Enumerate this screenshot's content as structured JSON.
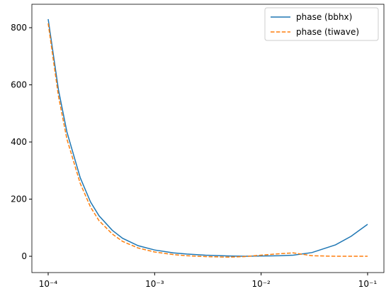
{
  "chart_data": {
    "type": "line",
    "x": [
      0.0001,
      0.000125,
      0.00015,
      0.0002,
      0.00025,
      0.0003,
      0.0004,
      0.0005,
      0.0007,
      0.001,
      0.0015,
      0.002,
      0.003,
      0.005,
      0.007,
      0.01,
      0.015,
      0.02,
      0.03,
      0.05,
      0.07,
      0.1
    ],
    "series": [
      {
        "name": "phase (bbhx)",
        "color": "#1f77b4",
        "linestyle": "solid",
        "values": [
          830,
          582,
          435,
          275,
          190,
          142,
          91,
          63,
          37,
          22,
          12,
          8,
          4,
          1,
          0,
          1,
          2,
          4,
          13,
          40,
          70,
          112
        ]
      },
      {
        "name": "phase (tiwave)",
        "color": "#ff7f0e",
        "linestyle": "dashed",
        "values": [
          815,
          560,
          410,
          255,
          172,
          125,
          78,
          52,
          29,
          15,
          6,
          2,
          -1,
          -3,
          -1,
          4,
          9,
          12,
          2,
          0,
          0,
          0
        ]
      }
    ],
    "xscale": "log",
    "xlim": [
      7.03e-05,
      0.1423
    ],
    "xticks": [
      {
        "value": 0.0001,
        "label": "10⁻⁴"
      },
      {
        "value": 0.001,
        "label": "10⁻³"
      },
      {
        "value": 0.01,
        "label": "10⁻²"
      },
      {
        "value": 0.1,
        "label": "10⁻¹"
      }
    ],
    "ylim": [
      -57,
      882
    ],
    "yticks": [
      0,
      200,
      400,
      600,
      800
    ],
    "legend": "upper right"
  }
}
